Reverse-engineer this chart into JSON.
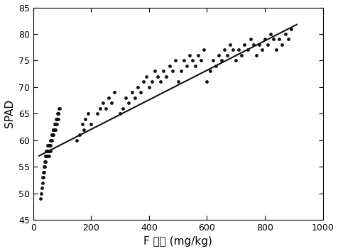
{
  "title": "",
  "xlabel": "F 含量 (mg/kg)",
  "ylabel": "SPAD",
  "xlim": [
    0,
    1000
  ],
  "ylim": [
    45,
    85
  ],
  "xticks": [
    0,
    200,
    400,
    600,
    800,
    1000
  ],
  "yticks": [
    45,
    50,
    55,
    60,
    65,
    70,
    75,
    80,
    85
  ],
  "scatter_color": "#111111",
  "line_color": "#111111",
  "scatter_size": 12,
  "line_slope": 0.02778,
  "line_intercept": 56.5,
  "scatter_x": [
    25,
    28,
    30,
    32,
    33,
    35,
    35,
    37,
    38,
    40,
    40,
    42,
    43,
    45,
    45,
    47,
    48,
    50,
    50,
    52,
    53,
    55,
    55,
    57,
    58,
    60,
    60,
    62,
    63,
    65,
    65,
    67,
    68,
    70,
    70,
    72,
    73,
    75,
    75,
    77,
    78,
    80,
    80,
    82,
    83,
    85,
    85,
    87,
    88,
    90,
    150,
    160,
    170,
    175,
    180,
    190,
    200,
    220,
    230,
    240,
    250,
    260,
    270,
    280,
    300,
    310,
    320,
    330,
    340,
    350,
    360,
    370,
    380,
    390,
    400,
    410,
    420,
    430,
    440,
    450,
    460,
    470,
    480,
    490,
    500,
    510,
    520,
    530,
    540,
    550,
    560,
    570,
    580,
    590,
    600,
    610,
    620,
    630,
    640,
    650,
    660,
    670,
    680,
    690,
    700,
    710,
    720,
    730,
    740,
    750,
    760,
    770,
    780,
    790,
    800,
    810,
    820,
    830,
    840,
    850,
    860,
    870,
    880,
    890
  ],
  "scatter_y": [
    49,
    50,
    51,
    52,
    53,
    54,
    53,
    55,
    54,
    55,
    56,
    56,
    57,
    57,
    58,
    58,
    58,
    59,
    57,
    59,
    58,
    57,
    58,
    59,
    58,
    59,
    60,
    60,
    61,
    61,
    60,
    61,
    62,
    61,
    62,
    62,
    63,
    63,
    62,
    63,
    64,
    63,
    64,
    64,
    65,
    64,
    65,
    65,
    66,
    66,
    60,
    61,
    63,
    62,
    64,
    65,
    63,
    65,
    66,
    67,
    66,
    68,
    67,
    69,
    65,
    66,
    68,
    67,
    69,
    68,
    70,
    69,
    71,
    72,
    70,
    71,
    73,
    72,
    71,
    73,
    72,
    74,
    73,
    75,
    71,
    73,
    75,
    74,
    76,
    75,
    74,
    76,
    75,
    77,
    71,
    73,
    75,
    74,
    76,
    75,
    77,
    76,
    78,
    77,
    75,
    77,
    76,
    78,
    77,
    79,
    78,
    76,
    78,
    77,
    79,
    78,
    80,
    79,
    77,
    79,
    78,
    80,
    79,
    81
  ],
  "figsize": [
    4.76,
    3.54
  ],
  "dpi": 100
}
